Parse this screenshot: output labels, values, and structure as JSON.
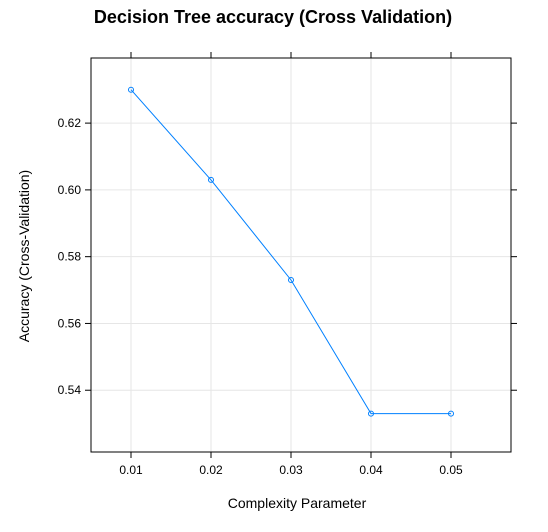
{
  "chart_data": {
    "type": "line",
    "title": "Decision Tree accuracy (Cross Validation)",
    "xlabel": "Complexity Parameter",
    "ylabel": "Accuracy (Cross-Validation)",
    "x": [
      0.01,
      0.02,
      0.03,
      0.04,
      0.05
    ],
    "series": [
      {
        "values": [
          0.63,
          0.603,
          0.573,
          0.533,
          0.533
        ]
      }
    ],
    "xticks": [
      "0.01",
      "0.02",
      "0.03",
      "0.04",
      "0.05"
    ],
    "yticks": [
      "0.54",
      "0.56",
      "0.58",
      "0.60",
      "0.62"
    ],
    "xlim": [
      0.005,
      0.0575
    ],
    "ylim": [
      0.5215,
      0.6395
    ],
    "grid": true,
    "marker": "circle",
    "colors": {
      "line": "#0080ff",
      "grid": "#e6e6e6",
      "frame": "#000000"
    }
  }
}
